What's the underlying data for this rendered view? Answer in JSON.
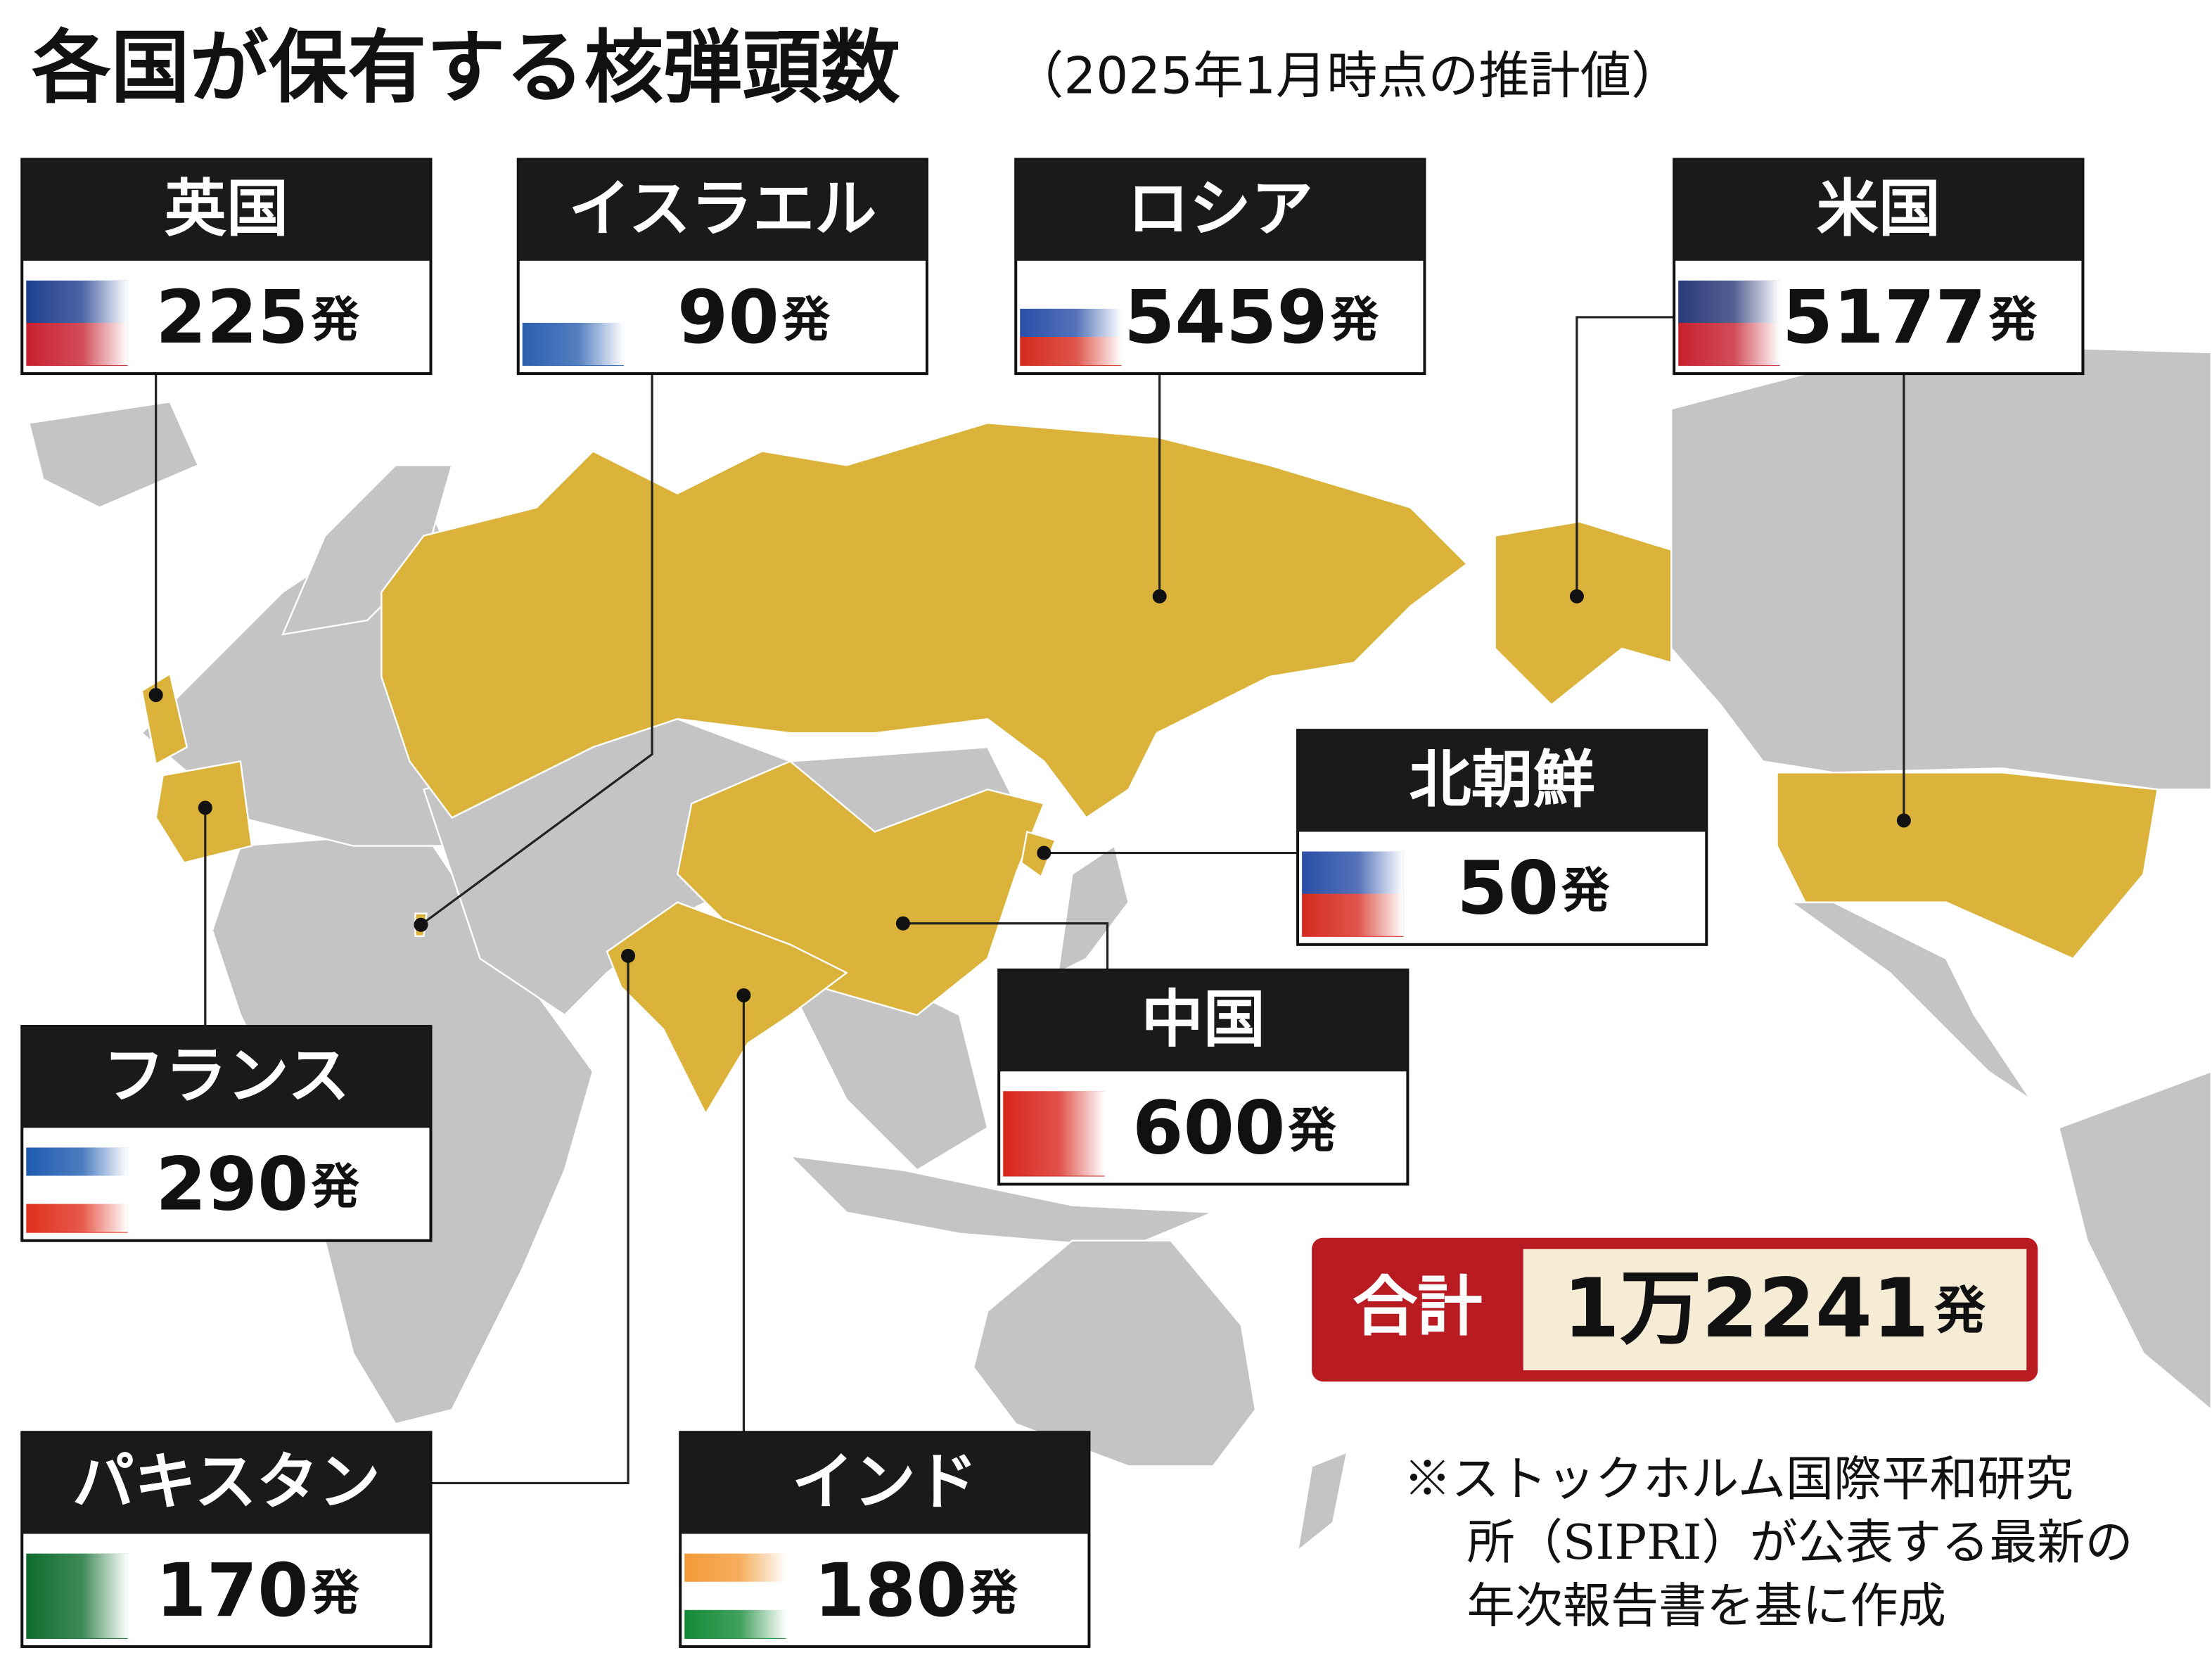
{
  "title": "各国が保有する核弾頭数",
  "subtitle": "（2025年1月時点の推計値）",
  "countries": [
    {
      "name": "英国",
      "count": 225,
      "unit": "発"
    },
    {
      "name": "イスラエル",
      "count": 90,
      "unit": "発"
    },
    {
      "name": "ロシア",
      "count": 5459,
      "unit": "発"
    },
    {
      "name": "米国",
      "count": 5177,
      "unit": "発"
    },
    {
      "name": "北朝鮮",
      "count": 50,
      "unit": "発"
    },
    {
      "name": "フランス",
      "count": 290,
      "unit": "発"
    },
    {
      "name": "中国",
      "count": 600,
      "unit": "発"
    },
    {
      "name": "パキスタン",
      "count": 170,
      "unit": "発"
    },
    {
      "name": "インド",
      "count": 180,
      "unit": "発"
    }
  ],
  "total": {
    "label": "合計",
    "count": "1万2241",
    "unit": "発"
  },
  "note": [
    "※ストックホルム国際平和研究",
    "所（SIPRI）が公表する最新の",
    "年次報告書を基に作成"
  ]
}
